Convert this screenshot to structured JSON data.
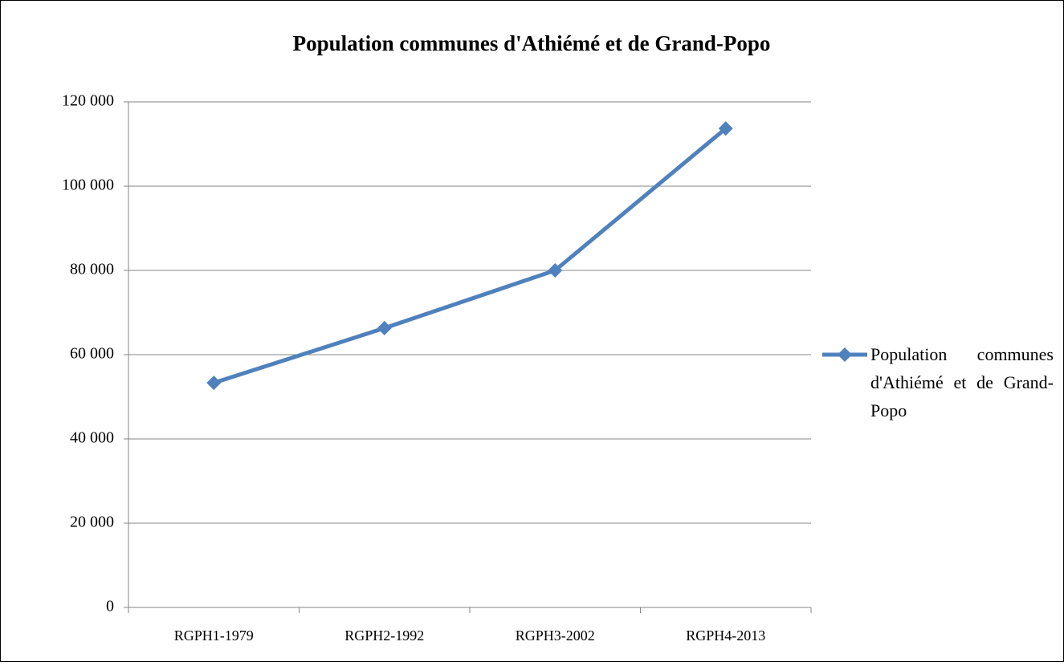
{
  "chart_data": {
    "type": "line",
    "title": "Population communes d'Athiémé et de Grand-Popo",
    "categories": [
      "RGPH1-1979",
      "RGPH2-1992",
      "RGPH3-2002",
      "RGPH4-2013"
    ],
    "series": [
      {
        "name": "Population communes d'Athiémé et de Grand-Popo",
        "color": "#4f81bd",
        "values": [
          53300,
          66300,
          80000,
          113700
        ]
      }
    ],
    "ylim": [
      0,
      120000
    ],
    "yticks": [
      0,
      {
        "value": 20000,
        "label": "20 000"
      },
      {
        "value": 40000,
        "label": "40 000"
      },
      {
        "value": 60000,
        "label": "60 000"
      },
      {
        "value": 80000,
        "label": "80 000"
      },
      {
        "value": 100000,
        "label": "100 000"
      },
      {
        "value": 120000,
        "label": "120 000"
      }
    ],
    "grid": true,
    "legend": "right"
  }
}
